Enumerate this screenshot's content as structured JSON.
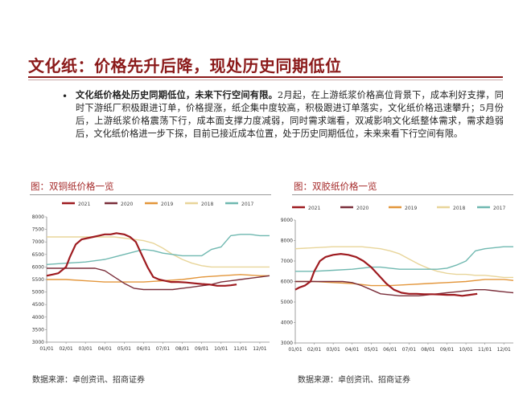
{
  "header": {
    "title": "文化纸：价格先升后降，现处历史同期低位"
  },
  "bullet": {
    "lead": "文化纸价格处历史同期低位，未来下行空间有限。",
    "body": "2月起，在上游纸浆价格高位背景下，成本利好支撑，同时下游纸厂积极跟进订单，价格提涨，纸企集中度较高，积极跟进订单落实，文化纸价格迅速攀升；5月份后，上游纸浆价格震荡下行，成本面支撑力度减弱，同时需求端看，双减影响文化纸整体需求，需求趋弱后，文化纸价格进一步下探，目前已接近成本位置，处于历史同期低位，未来来看下行空间有限。"
  },
  "charts": [
    {
      "title": "图：双铜纸价格一览",
      "source": "数据来源：卓创资讯、招商证券"
    },
    {
      "title": "图：双胶纸价格一览",
      "source": "数据来源：卓创资讯、招商证券"
    }
  ],
  "colors": {
    "2021": "#9e1b20",
    "2020": "#7a2e3a",
    "2019": "#e3963b",
    "2018": "#e8d59a",
    "2017": "#6fb8b0",
    "title": "#8b1a1a"
  },
  "chart_data": [
    {
      "type": "line",
      "title": "图：双铜纸价格一览",
      "categories": [
        "01/01",
        "02/01",
        "03/01",
        "04/01",
        "05/01",
        "06/01",
        "07/01",
        "08/01",
        "09/01",
        "10/01",
        "11/01",
        "12/01"
      ],
      "ylim": [
        3000,
        8000
      ],
      "yticks": [
        3000,
        3500,
        4000,
        4500,
        5000,
        5500,
        6000,
        6500,
        7000,
        7500,
        8000
      ],
      "legend": [
        "2021",
        "2020",
        "2019",
        "2018",
        "2017"
      ],
      "series": [
        {
          "name": "2021",
          "x": [
            0,
            0.3,
            0.6,
            1.0,
            1.2,
            1.5,
            1.8,
            2.1,
            2.4,
            2.7,
            3.0,
            3.3,
            3.6,
            4.0,
            4.3,
            4.6,
            4.9,
            5.2,
            5.5,
            5.8,
            6.1,
            6.4,
            6.8,
            7.2,
            7.6,
            8.0,
            8.4,
            8.8,
            9.2,
            9.5,
            9.8
          ],
          "values": [
            5650,
            5700,
            5750,
            6000,
            6400,
            6900,
            7100,
            7150,
            7200,
            7250,
            7300,
            7300,
            7350,
            7300,
            7200,
            7000,
            6500,
            6000,
            5600,
            5500,
            5450,
            5400,
            5400,
            5380,
            5350,
            5320,
            5300,
            5250,
            5250,
            5270,
            5300
          ]
        },
        {
          "name": "2020",
          "x": [
            0,
            0.5,
            1.0,
            1.5,
            2.0,
            2.5,
            3.0,
            3.5,
            4.0,
            4.5,
            5.0,
            5.5,
            6.0,
            6.5,
            7.0,
            7.5,
            8.0,
            8.5,
            9.0,
            9.5,
            10.0,
            10.5,
            11.0,
            11.5
          ],
          "values": [
            5950,
            5950,
            5950,
            5950,
            5950,
            5950,
            5850,
            5600,
            5350,
            5150,
            5100,
            5100,
            5100,
            5100,
            5150,
            5200,
            5250,
            5300,
            5400,
            5450,
            5500,
            5550,
            5600,
            5650
          ]
        },
        {
          "name": "2019",
          "x": [
            0,
            1,
            2,
            3,
            4,
            5,
            6,
            7,
            8,
            9,
            10,
            11,
            11.5
          ],
          "values": [
            5500,
            5500,
            5450,
            5400,
            5400,
            5400,
            5450,
            5500,
            5600,
            5650,
            5700,
            5650,
            5650
          ]
        },
        {
          "name": "2018",
          "x": [
            0,
            1,
            2,
            3,
            3.5,
            4,
            4.5,
            5,
            5.5,
            6,
            6.5,
            7,
            7.5,
            8,
            8.5,
            9,
            9.5,
            10,
            10.5,
            11,
            11.5
          ],
          "values": [
            7200,
            7200,
            7200,
            7200,
            7200,
            7150,
            7100,
            7050,
            6950,
            6750,
            6500,
            6300,
            6150,
            6050,
            6000,
            6000,
            6000,
            6000,
            6000,
            6000,
            6000
          ]
        },
        {
          "name": "2017",
          "x": [
            0,
            1,
            2,
            3,
            3.5,
            4,
            4.5,
            5,
            5.5,
            6,
            6.5,
            7,
            7.5,
            8,
            8.5,
            9,
            9.5,
            10,
            10.5,
            11,
            11.5
          ],
          "values": [
            6100,
            6150,
            6200,
            6300,
            6400,
            6500,
            6600,
            6700,
            6650,
            6550,
            6500,
            6450,
            6450,
            6450,
            6700,
            6800,
            7250,
            7300,
            7300,
            7250,
            7250
          ]
        }
      ]
    },
    {
      "type": "line",
      "title": "图：双胶纸价格一览",
      "categories": [
        "01/01",
        "02/01",
        "03/01",
        "04/01",
        "05/01",
        "06/01",
        "07/01",
        "08/01",
        "09/01",
        "10/01",
        "11/01",
        "12/01"
      ],
      "ylim": [
        3000,
        9000
      ],
      "yticks": [
        3000,
        4000,
        5000,
        6000,
        7000,
        8000,
        9000
      ],
      "legend": [
        "2021",
        "2020",
        "2019",
        "2018",
        "2017"
      ],
      "series": [
        {
          "name": "2021",
          "x": [
            0,
            0.2,
            0.5,
            0.8,
            1.0,
            1.3,
            1.6,
            2.0,
            2.4,
            2.8,
            3.2,
            3.6,
            4.0,
            4.4,
            4.8,
            5.2,
            5.6,
            6.0,
            6.4,
            6.8,
            7.2,
            7.6,
            8.0,
            8.4,
            8.8,
            9.2,
            9.6
          ],
          "values": [
            5600,
            5700,
            5800,
            6000,
            6500,
            7000,
            7200,
            7300,
            7350,
            7300,
            7200,
            7000,
            6700,
            6300,
            5900,
            5600,
            5450,
            5400,
            5400,
            5380,
            5380,
            5370,
            5350,
            5350,
            5300,
            5350,
            5400
          ]
        },
        {
          "name": "2020",
          "x": [
            0,
            0.5,
            1.0,
            1.5,
            2.0,
            2.5,
            3.0,
            3.5,
            4.0,
            4.5,
            5.0,
            5.5,
            6.0,
            6.5,
            7.0,
            7.5,
            8.0,
            8.5,
            9.0,
            9.5,
            10.0,
            10.5,
            11.0,
            11.5
          ],
          "values": [
            6000,
            6000,
            6000,
            6000,
            6000,
            6000,
            5950,
            5800,
            5600,
            5400,
            5350,
            5300,
            5300,
            5300,
            5350,
            5400,
            5450,
            5500,
            5550,
            5600,
            5600,
            5550,
            5500,
            5450
          ]
        },
        {
          "name": "2019",
          "x": [
            0,
            1,
            2,
            3,
            4,
            5,
            6,
            7,
            8,
            9,
            10,
            11,
            11.5
          ],
          "values": [
            6000,
            6000,
            5950,
            5900,
            5800,
            5800,
            5850,
            5900,
            5950,
            6000,
            6100,
            6100,
            6050
          ]
        },
        {
          "name": "2018",
          "x": [
            0,
            1,
            2,
            3,
            3.5,
            4,
            4.5,
            5,
            5.5,
            6,
            6.5,
            7,
            7.5,
            8,
            8.5,
            9,
            9.5,
            10,
            10.5,
            11,
            11.5
          ],
          "values": [
            7600,
            7650,
            7700,
            7700,
            7700,
            7650,
            7600,
            7500,
            7350,
            7100,
            6850,
            6650,
            6500,
            6400,
            6350,
            6350,
            6300,
            6300,
            6250,
            6200,
            6200
          ]
        },
        {
          "name": "2017",
          "x": [
            0,
            1,
            2,
            3,
            3.5,
            4,
            4.5,
            5,
            5.5,
            6,
            6.5,
            7,
            7.5,
            8,
            8.5,
            9,
            9.5,
            10,
            10.5,
            11,
            11.5
          ],
          "values": [
            6500,
            6500,
            6550,
            6600,
            6650,
            6700,
            6700,
            6650,
            6600,
            6600,
            6600,
            6600,
            6600,
            6650,
            6800,
            7000,
            7500,
            7600,
            7650,
            7700,
            7700
          ]
        }
      ]
    }
  ]
}
